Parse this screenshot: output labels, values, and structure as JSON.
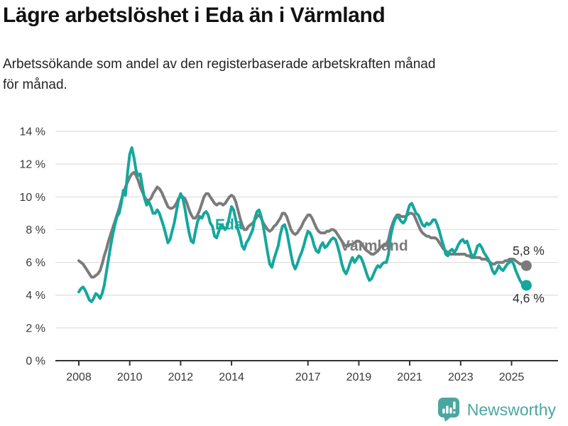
{
  "title": "Lägre arbetslöshet i Eda än i Värmland",
  "subtitle": {
    "line1": "Arbetssökande som andel av den registerbaserade arbetskraften månad",
    "line2": "för månad."
  },
  "footer": {
    "brand": "Newsworthy",
    "logo_icon": "bar-chart-speech-bubble-icon"
  },
  "colors": {
    "eda_line": "#15a79c",
    "varmland_line": "#7b7b7b",
    "grid": "#e0e0e0",
    "axis": "#333333",
    "tick_text": "#3a3a3a",
    "value_label_text": "#2e2e2e",
    "brand_teal": "#4ba6a1"
  },
  "chart_data": {
    "type": "line",
    "title": "Lägre arbetslöshet i Eda än i Värmland",
    "x_start": "2008-01",
    "x_end": "2025-08",
    "x_frequency": "monthly",
    "ylim": [
      0,
      14
    ],
    "y_unit": "%",
    "grid": true,
    "legend_position": "inline-labels",
    "x_tick_years": [
      2008,
      2010,
      2012,
      2014,
      2017,
      2019,
      2021,
      2023,
      2025
    ],
    "x_tick_labels": [
      "2008",
      "2010",
      "2012",
      "2014",
      "2017",
      "2019",
      "2021",
      "2023",
      "2025"
    ],
    "y_tick_values": [
      0,
      2,
      4,
      6,
      8,
      10,
      12,
      14
    ],
    "y_tick_labels": [
      "0 %",
      "2 %",
      "4 %",
      "6 %",
      "8 %",
      "10 %",
      "12 %",
      "14 %"
    ],
    "series": [
      {
        "name": "Värmland",
        "color": "#7b7b7b",
        "end_label": "5,8 %",
        "end_value": 5.8,
        "values": [
          6.1,
          6.0,
          5.9,
          5.7,
          5.5,
          5.3,
          5.1,
          5.1,
          5.2,
          5.3,
          5.5,
          5.9,
          6.4,
          6.8,
          7.3,
          7.7,
          8.1,
          8.5,
          8.9,
          9.3,
          9.8,
          10.2,
          10.6,
          10.9,
          11.2,
          11.4,
          11.5,
          11.3,
          11.0,
          10.6,
          10.3,
          10.0,
          9.8,
          9.8,
          9.9,
          10.2,
          10.4,
          10.6,
          10.5,
          10.3,
          10.0,
          9.7,
          9.4,
          9.3,
          9.3,
          9.4,
          9.6,
          9.9,
          10.0,
          10.0,
          9.9,
          9.6,
          9.2,
          8.9,
          8.7,
          8.7,
          8.9,
          9.2,
          9.6,
          10.0,
          10.2,
          10.2,
          10.0,
          9.8,
          9.6,
          9.5,
          9.6,
          9.6,
          9.5,
          9.6,
          9.8,
          10.0,
          10.1,
          10.0,
          9.7,
          9.2,
          8.7,
          8.3,
          8.0,
          8.0,
          8.2,
          8.3,
          8.4,
          8.6,
          8.8,
          8.9,
          8.7,
          8.4,
          8.2,
          8.0,
          7.9,
          8.0,
          8.2,
          8.3,
          8.5,
          8.7,
          9.0,
          9.0,
          8.8,
          8.4,
          8.0,
          7.8,
          7.7,
          7.8,
          8.0,
          8.2,
          8.5,
          8.7,
          8.9,
          8.9,
          8.7,
          8.4,
          8.1,
          7.9,
          7.8,
          7.8,
          7.8,
          7.9,
          7.9,
          8.0,
          8.0,
          7.9,
          7.7,
          7.5,
          7.3,
          7.1,
          7.0,
          7.0,
          7.1,
          7.1,
          7.2,
          7.3,
          7.3,
          7.2,
          7.0,
          6.8,
          6.7,
          6.6,
          6.5,
          6.5,
          6.6,
          6.7,
          6.9,
          7.0,
          7.1,
          7.1,
          7.4,
          8.0,
          8.4,
          8.7,
          8.9,
          8.9,
          8.8,
          8.8,
          8.8,
          8.9,
          9.0,
          9.0,
          8.9,
          8.6,
          8.3,
          8.0,
          7.8,
          7.7,
          7.6,
          7.6,
          7.5,
          7.5,
          7.5,
          7.4,
          7.2,
          7.0,
          6.8,
          6.7,
          6.6,
          6.5,
          6.5,
          6.5,
          6.5,
          6.5,
          6.5,
          6.5,
          6.5,
          6.4,
          6.4,
          6.3,
          6.3,
          6.3,
          6.3,
          6.3,
          6.2,
          6.2,
          6.2,
          6.1,
          6.0,
          5.9,
          5.9,
          6.0,
          6.0,
          6.0,
          6.0,
          6.1,
          6.1,
          6.2,
          6.2,
          6.2,
          6.1,
          6.0,
          5.9,
          5.9,
          5.8,
          5.8
        ]
      },
      {
        "name": "Eda",
        "color": "#15a79c",
        "end_label": "4,6 %",
        "end_value": 4.6,
        "values": [
          4.2,
          4.4,
          4.5,
          4.3,
          4.0,
          3.7,
          3.6,
          3.8,
          4.1,
          4.0,
          3.8,
          4.1,
          4.6,
          5.4,
          6.2,
          7.0,
          7.7,
          8.3,
          8.8,
          9.0,
          9.6,
          10.4,
          10.1,
          11.5,
          12.6,
          13.0,
          12.4,
          11.6,
          11.3,
          11.4,
          10.6,
          9.9,
          9.5,
          9.7,
          9.4,
          9.0,
          9.0,
          9.2,
          9.0,
          8.6,
          8.2,
          7.7,
          7.2,
          7.4,
          7.9,
          8.4,
          9.1,
          9.8,
          10.2,
          9.9,
          9.3,
          8.5,
          7.8,
          7.3,
          7.2,
          7.9,
          8.5,
          8.8,
          8.7,
          9.0,
          9.1,
          8.9,
          8.4,
          8.2,
          7.6,
          7.5,
          7.9,
          8.3,
          8.2,
          8.0,
          8.2,
          8.8,
          9.4,
          9.2,
          8.6,
          8.0,
          7.6,
          7.0,
          6.8,
          7.2,
          7.4,
          7.7,
          8.0,
          8.7,
          9.1,
          9.2,
          8.8,
          8.2,
          7.4,
          6.6,
          5.9,
          5.7,
          6.2,
          6.6,
          7.0,
          7.7,
          8.2,
          8.3,
          7.9,
          7.2,
          6.5,
          5.9,
          5.6,
          5.9,
          6.3,
          6.6,
          7.0,
          7.5,
          7.9,
          7.8,
          7.5,
          7.0,
          6.7,
          6.6,
          7.0,
          7.2,
          6.9,
          7.0,
          7.2,
          7.4,
          7.5,
          7.4,
          7.0,
          6.5,
          5.9,
          5.5,
          5.3,
          5.6,
          6.0,
          6.3,
          6.0,
          6.2,
          6.4,
          6.3,
          6.0,
          5.6,
          5.2,
          4.9,
          5.0,
          5.3,
          5.6,
          5.8,
          5.7,
          5.9,
          6.0,
          6.0,
          6.5,
          7.6,
          8.2,
          8.6,
          8.8,
          8.7,
          8.5,
          8.4,
          8.6,
          9.1,
          9.5,
          9.6,
          9.3,
          9.0,
          8.9,
          8.6,
          8.3,
          8.2,
          8.4,
          8.3,
          8.4,
          8.6,
          8.6,
          8.3,
          7.9,
          7.4,
          7.0,
          6.5,
          6.4,
          6.7,
          6.8,
          6.6,
          6.8,
          7.1,
          7.3,
          7.4,
          7.2,
          7.3,
          6.9,
          6.5,
          6.3,
          6.6,
          7.0,
          7.1,
          6.9,
          6.6,
          6.4,
          6.2,
          5.9,
          5.5,
          5.3,
          5.5,
          5.8,
          5.6,
          5.5,
          5.7,
          5.9,
          6.0,
          6.1,
          5.9,
          5.5,
          5.2,
          4.9,
          4.7,
          4.6,
          4.6
        ]
      }
    ]
  }
}
